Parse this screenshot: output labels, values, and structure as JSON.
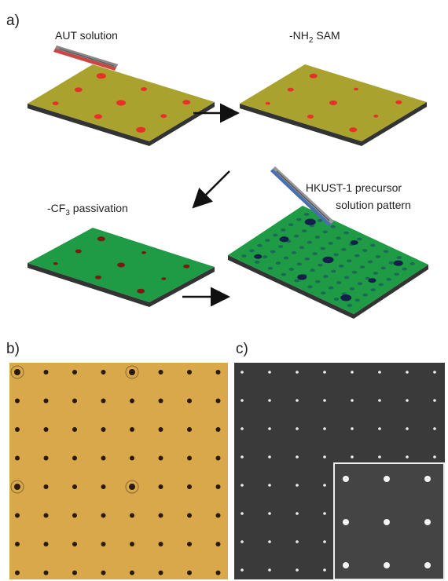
{
  "panel_a": {
    "label": "a)",
    "step1": "AUT solution",
    "step2": {
      "text": "-NH",
      "sub": "2",
      "rest": " SAM"
    },
    "step3": {
      "text": "-CF",
      "sub": "3",
      "rest": " passivation"
    },
    "step4": {
      "line1": "HKUST-1 precursor",
      "line2": "solution pattern"
    }
  },
  "panel_b": {
    "label": "b)"
  },
  "panel_c": {
    "label": "c)"
  }
}
